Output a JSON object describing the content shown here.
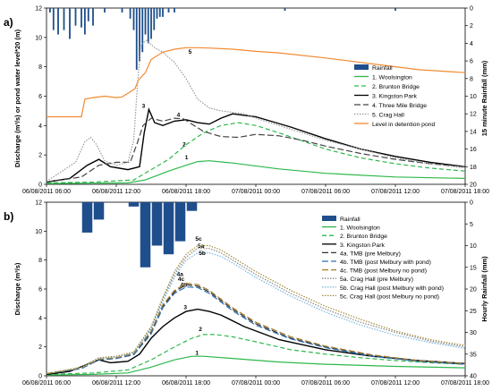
{
  "chart_data": [
    {
      "panel": "a)",
      "type": "line",
      "xlabels": [
        "06/08/2011 06:00",
        "06/08/2011 12:00",
        "06/08/2011 18:00",
        "07/08/2011 00:00",
        "07/08/2011 06:00",
        "07/08/2011 12:00",
        "07/08/2011 18:00"
      ],
      "xlim": [
        6,
        42
      ],
      "ylim": [
        0,
        12
      ],
      "yticks": [
        0,
        2,
        4,
        6,
        8,
        10,
        12
      ],
      "ylabel": "Discharge (m³/s) or pond water level*20 (m)",
      "y2lim": [
        0,
        20
      ],
      "y2ticks": [
        0,
        2,
        4,
        6,
        8,
        10,
        12,
        14,
        16,
        18,
        20
      ],
      "y2label": "15 minute Rainfall (mm)",
      "rainfall": {
        "name": "Rainfall",
        "color": "#1f4e8c",
        "x": [
          6.3,
          6.6,
          7.0,
          7.5,
          8.0,
          8.5,
          9.0,
          9.3,
          9.6,
          10.0,
          11.0,
          12.5,
          13.2,
          13.5,
          13.75,
          14.0,
          14.25,
          14.5,
          14.75,
          15.0,
          15.25,
          15.5,
          15.75,
          16.0,
          16.5,
          17.0,
          26.5,
          36.0
        ],
        "values": [
          0.5,
          2.5,
          3.0,
          2.5,
          3.5,
          2.0,
          2.2,
          3.0,
          1.5,
          2.0,
          0.5,
          0.5,
          1.2,
          2.5,
          7.0,
          6.0,
          5.0,
          3.0,
          4.0,
          3.5,
          2.5,
          1.2,
          1.0,
          1.0,
          0.5,
          0.5,
          0.3,
          0.3
        ]
      },
      "series": [
        {
          "name": "1. Woolsington",
          "label": "1",
          "color": "#2db84b",
          "dash": "",
          "x": [
            6,
            10,
            13,
            14.5,
            15.5,
            16.5,
            18,
            19,
            20,
            22,
            26,
            30,
            36,
            42
          ],
          "y": [
            0.05,
            0.08,
            0.1,
            0.3,
            0.6,
            0.9,
            1.3,
            1.55,
            1.6,
            1.45,
            1.05,
            0.75,
            0.5,
            0.4
          ]
        },
        {
          "name": "2. Brunton Bridge",
          "label": "2",
          "color": "#2db84b",
          "dash": "5,3",
          "x": [
            6,
            10,
            13.5,
            15,
            16.5,
            18,
            19.5,
            21,
            22.5,
            24,
            26,
            30,
            33,
            36,
            39,
            42
          ],
          "y": [
            0.1,
            0.15,
            0.3,
            1.0,
            1.7,
            2.7,
            3.5,
            4.0,
            4.2,
            4.0,
            3.5,
            2.4,
            1.8,
            1.4,
            1.1,
            0.9
          ]
        },
        {
          "name": "3. Kingston Park",
          "label": "3",
          "color": "#000000",
          "dash": "",
          "x": [
            6,
            8,
            9.5,
            10.5,
            11.5,
            13,
            14,
            14.4,
            14.8,
            15.3,
            16,
            17,
            18,
            19,
            20,
            21,
            22,
            24,
            27,
            30,
            33,
            36,
            39,
            42
          ],
          "y": [
            0.15,
            0.4,
            1.3,
            1.7,
            1.2,
            1.0,
            1.2,
            3.5,
            5.1,
            4.2,
            4.0,
            4.3,
            4.4,
            4.2,
            4.1,
            4.5,
            4.8,
            4.6,
            3.9,
            3.1,
            2.4,
            1.9,
            1.5,
            1.2
          ]
        },
        {
          "name": "4. Three Mile Bridge",
          "label": "4",
          "color": "#444444",
          "dash": "7,3",
          "x": [
            6,
            9,
            10.5,
            12,
            13.2,
            13.8,
            14.3,
            15,
            16,
            17,
            17.8,
            18.5,
            19.5,
            21,
            22.5,
            24,
            26,
            28,
            30,
            33,
            36,
            39,
            42
          ],
          "y": [
            0.15,
            0.5,
            1.3,
            1.5,
            1.5,
            2.8,
            4.0,
            4.5,
            4.3,
            4.5,
            4.45,
            4.1,
            3.6,
            3.25,
            3.2,
            3.4,
            3.3,
            3.0,
            2.6,
            2.1,
            1.7,
            1.4,
            1.2
          ]
        },
        {
          "name": "5. Crag Hall",
          "label": "5",
          "color": "#999999",
          "dash": "1.5,1.5",
          "x": [
            6,
            8.5,
            9.3,
            9.8,
            10.3,
            11,
            12,
            13,
            13.5,
            13.8,
            14.1,
            14.6,
            15.3,
            16,
            17,
            18,
            19,
            20,
            21,
            22,
            23,
            24,
            26,
            30,
            33,
            36,
            39,
            42
          ],
          "y": [
            0.2,
            1.5,
            2.9,
            3.2,
            2.7,
            1.6,
            1.3,
            1.5,
            3.0,
            6.5,
            9.5,
            9.8,
            9.3,
            9.0,
            8.3,
            7.2,
            5.8,
            5.2,
            5.0,
            4.9,
            4.8,
            4.5,
            4.0,
            3.0,
            2.4,
            1.8,
            1.4,
            1.1
          ]
        },
        {
          "name": "Level in detention pond",
          "label": "",
          "color": "#f28a30",
          "dash": "",
          "x": [
            6,
            9,
            9.3,
            10,
            11,
            12,
            12.5,
            13.2,
            13.6,
            13.9,
            14.5,
            15,
            16,
            17,
            18,
            19,
            20,
            22,
            24,
            26,
            30,
            34,
            38,
            42
          ],
          "y": [
            4.6,
            4.6,
            5.8,
            5.9,
            6.0,
            5.9,
            5.95,
            6.3,
            6.5,
            7.1,
            7.6,
            8.5,
            9.0,
            9.2,
            9.3,
            9.3,
            9.28,
            9.2,
            9.05,
            8.95,
            8.6,
            8.2,
            7.8,
            7.6
          ]
        }
      ]
    },
    {
      "panel": "b)",
      "type": "line",
      "xlabels": [
        "06/08/2011 06:00",
        "06/08/2011 12:00",
        "06/08/2011 18:00",
        "07/08/2011 00:00",
        "07/08/2011 06:00",
        "07/08/2011 12:00",
        "07/08/2011 18:00"
      ],
      "xlim": [
        6,
        42
      ],
      "ylim": [
        0,
        12
      ],
      "yticks": [
        0,
        2,
        4,
        6,
        8,
        10,
        12
      ],
      "ylabel": "Discharge (m³/s)",
      "y2lim": [
        0,
        40
      ],
      "y2ticks": [
        0,
        5,
        10,
        15,
        20,
        25,
        30,
        35,
        40
      ],
      "y2label": "Hourly Rainfall (mm)",
      "rainfall": {
        "name": "Rainfall",
        "color": "#1f4e8c",
        "x": [
          9.5,
          10.5,
          13.5,
          14.5,
          15.5,
          16.5,
          17.5,
          18.5
        ],
        "values": [
          7,
          4,
          1,
          15,
          10,
          12,
          9,
          2
        ]
      },
      "series": [
        {
          "name": "1. Woolsington",
          "label": "1",
          "color": "#2db84b",
          "dash": "",
          "x": [
            6,
            10,
            13,
            15,
            17,
            18.5,
            19.5,
            22,
            26,
            30,
            36,
            42
          ],
          "y": [
            0.05,
            0.1,
            0.2,
            0.6,
            1.1,
            1.35,
            1.35,
            1.2,
            0.95,
            0.8,
            0.65,
            0.55
          ]
        },
        {
          "name": "2. Brunton Bridge",
          "label": "2",
          "color": "#2db84b",
          "dash": "5,3",
          "x": [
            6,
            10,
            13,
            15,
            17,
            18.5,
            19.5,
            20.5,
            22,
            24,
            27,
            30,
            33,
            36,
            39,
            42
          ],
          "y": [
            0.1,
            0.2,
            0.4,
            1.1,
            2.0,
            2.6,
            2.85,
            2.85,
            2.7,
            2.35,
            1.8,
            1.5,
            1.25,
            1.05,
            0.9,
            0.8
          ]
        },
        {
          "name": "3. Kingston Park",
          "label": "3",
          "color": "#000000",
          "dash": "",
          "x": [
            6,
            8,
            9.5,
            10.5,
            11.5,
            13,
            14,
            15,
            16,
            17,
            18,
            19,
            20,
            21,
            23,
            26,
            30,
            34,
            38,
            42
          ],
          "y": [
            0.1,
            0.3,
            0.8,
            1.1,
            0.9,
            1.0,
            1.5,
            2.6,
            3.4,
            4.0,
            4.45,
            4.6,
            4.45,
            4.2,
            3.4,
            2.5,
            1.8,
            1.35,
            1.05,
            0.85
          ]
        },
        {
          "name": "4a. TMB (pre Melbury)",
          "label": "4a",
          "color": "#333333",
          "dash": "7,3",
          "x": [
            6,
            9,
            10.5,
            12,
            13.5,
            15,
            16,
            17,
            18,
            19,
            20,
            22,
            24,
            27,
            30,
            34,
            38,
            42
          ],
          "y": [
            0.15,
            0.5,
            1.1,
            1.2,
            1.5,
            3.0,
            4.8,
            5.8,
            6.3,
            6.2,
            5.8,
            4.6,
            3.6,
            2.6,
            2.0,
            1.4,
            1.0,
            0.8
          ]
        },
        {
          "name": "4b. TMB (post Melbury with pond)",
          "label": "4b",
          "color": "#2f6fb3",
          "dash": "7,3",
          "x": [
            6,
            9,
            10.5,
            12,
            13.5,
            15,
            16,
            17,
            18,
            19,
            20,
            22,
            24,
            27,
            30,
            34,
            38,
            42
          ],
          "y": [
            0.15,
            0.5,
            1.1,
            1.2,
            1.45,
            2.9,
            4.7,
            5.7,
            6.15,
            6.1,
            5.7,
            4.5,
            3.5,
            2.55,
            1.95,
            1.35,
            1.0,
            0.8
          ]
        },
        {
          "name": "4c. TMB (post Melbury no pond)",
          "label": "4c",
          "color": "#a67c2e",
          "dash": "7,3",
          "x": [
            6,
            9,
            10.5,
            12,
            13.5,
            15,
            16,
            17,
            18,
            19,
            20,
            22,
            24,
            27,
            30,
            34,
            38,
            42
          ],
          "y": [
            0.15,
            0.55,
            1.15,
            1.25,
            1.55,
            3.1,
            4.9,
            5.9,
            6.4,
            6.3,
            5.9,
            4.7,
            3.7,
            2.7,
            2.05,
            1.45,
            1.05,
            0.85
          ]
        },
        {
          "name": "5a. Crag Hall (pre Melbury)",
          "label": "5a",
          "color": "#888888",
          "dash": "1.5,1.5",
          "x": [
            6,
            9,
            10.5,
            12,
            13.5,
            15,
            16,
            17,
            18,
            19,
            20,
            21,
            22,
            24,
            27,
            30,
            33,
            36,
            39,
            42
          ],
          "y": [
            0.15,
            0.55,
            1.2,
            1.3,
            1.6,
            3.3,
            5.3,
            7.0,
            8.2,
            8.8,
            8.8,
            8.5,
            8.0,
            7.0,
            5.7,
            4.6,
            3.7,
            3.0,
            2.4,
            2.0
          ]
        },
        {
          "name": "5b. Crag Hall (post Melbury with pond)",
          "label": "5b",
          "color": "#7ab7e0",
          "dash": "1.5,1.5",
          "x": [
            6,
            9,
            10.5,
            12,
            13.5,
            15,
            16,
            17,
            18,
            19,
            20,
            21,
            22,
            24,
            27,
            30,
            33,
            36,
            39,
            42
          ],
          "y": [
            0.15,
            0.55,
            1.2,
            1.3,
            1.6,
            3.2,
            5.1,
            6.8,
            8.0,
            8.5,
            8.5,
            8.25,
            7.8,
            6.8,
            5.5,
            4.4,
            3.5,
            2.8,
            2.3,
            1.9
          ]
        },
        {
          "name": "5c. Crag Hall (post Melbury no pond)",
          "label": "5c",
          "color": "#a08a3a",
          "dash": "1.5,1.5",
          "x": [
            6,
            9,
            10.5,
            12,
            13.5,
            15,
            16,
            17,
            18,
            19,
            20,
            21,
            22,
            24,
            27,
            30,
            33,
            36,
            39,
            42
          ],
          "y": [
            0.15,
            0.6,
            1.25,
            1.35,
            1.65,
            3.4,
            5.4,
            7.2,
            8.4,
            9.0,
            9.0,
            8.7,
            8.2,
            7.2,
            5.9,
            4.8,
            3.9,
            3.1,
            2.5,
            2.1
          ]
        }
      ],
      "label_order": [
        "4a",
        "4b",
        "4c"
      ],
      "label_order_5": [
        "5c",
        "5a",
        "5b"
      ]
    }
  ]
}
